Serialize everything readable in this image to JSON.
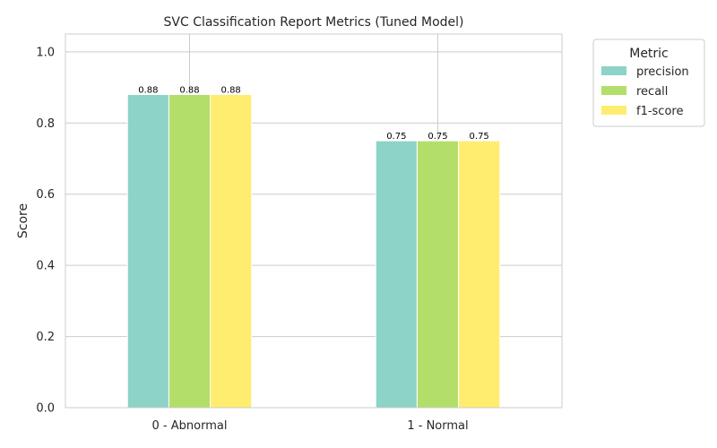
{
  "chart_data": {
    "type": "bar",
    "title": "SVC Classification Report Metrics (Tuned Model)",
    "xlabel": "",
    "ylabel": "Score",
    "ylim": [
      0,
      1.05
    ],
    "yticks": [
      0.0,
      0.2,
      0.4,
      0.6,
      0.8,
      1.0
    ],
    "ytick_labels": [
      "0.0",
      "0.2",
      "0.4",
      "0.6",
      "0.8",
      "1.0"
    ],
    "categories": [
      "0 - Abnormal",
      "1 - Normal"
    ],
    "series": [
      {
        "name": "precision",
        "values": [
          0.88,
          0.75
        ],
        "labels": [
          "0.88",
          "0.75"
        ],
        "color": "#8dd3c7"
      },
      {
        "name": "recall",
        "values": [
          0.88,
          0.75
        ],
        "labels": [
          "0.88",
          "0.75"
        ],
        "color": "#b3de69"
      },
      {
        "name": "f1-score",
        "values": [
          0.88,
          0.75
        ],
        "labels": [
          "0.88",
          "0.75"
        ],
        "color": "#ffed6f"
      }
    ],
    "grid": true,
    "legend": {
      "title": "Metric",
      "placement": "outside-top-right"
    }
  }
}
